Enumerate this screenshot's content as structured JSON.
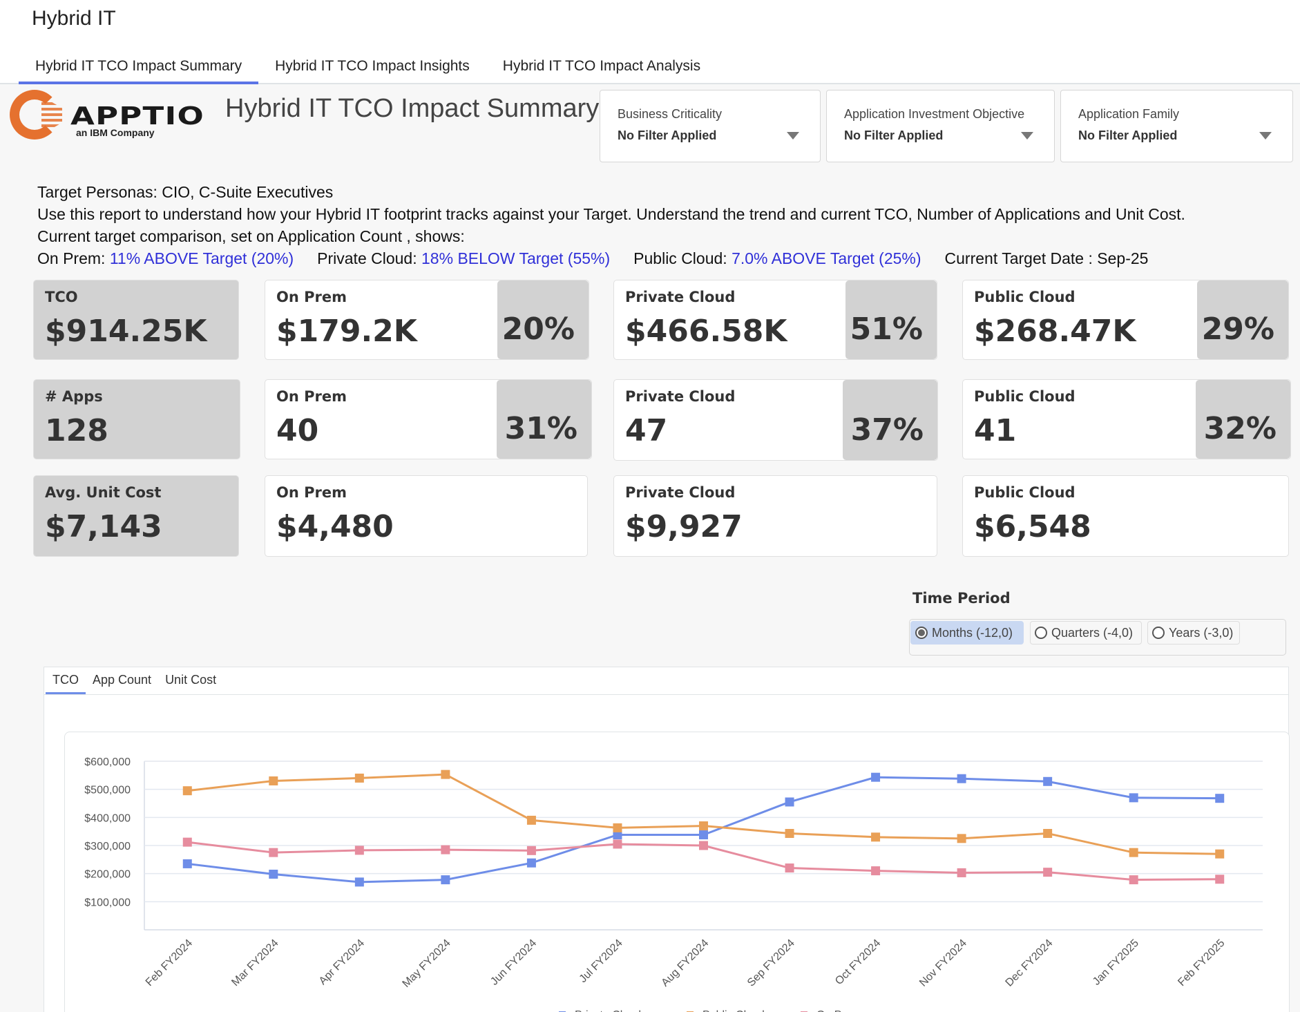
{
  "app": {
    "title": "Hybrid IT"
  },
  "tabs": [
    {
      "label": "Hybrid IT TCO Impact Summary",
      "active": true
    },
    {
      "label": "Hybrid IT TCO Impact Insights",
      "active": false
    },
    {
      "label": "Hybrid IT TCO Impact Analysis",
      "active": false
    }
  ],
  "logo": {
    "name": "APPTIO",
    "sub": "an IBM Company",
    "brand_color": "#e5712f"
  },
  "page_title": "Hybrid IT TCO Impact Summary",
  "filters": [
    {
      "label": "Business Criticality",
      "value": "No Filter Applied"
    },
    {
      "label": "Application Investment Objective",
      "value": "No Filter Applied"
    },
    {
      "label": "Application Family",
      "value": "No Filter Applied"
    }
  ],
  "description": {
    "line1": "Target Personas: CIO, C-Suite Executives",
    "line2": "Use this report to understand how your Hybrid IT footprint tracks against your Target. Understand the trend and current TCO, Number of Applications and Unit Cost.",
    "line3": "Current target comparison, set on Application Count , shows:",
    "onprem_label": "On Prem: ",
    "onprem_value": "11% ABOVE Target (20%)",
    "private_label": "Private Cloud: ",
    "private_value": "18% BELOW Target (55%)",
    "public_label": "Public Cloud: ",
    "public_value": "7.0% ABOVE Target (25%)",
    "target_date": "Current Target Date : Sep-25",
    "highlight_color": "#3030d8"
  },
  "kpis": {
    "tco": {
      "total": {
        "label": "TCO",
        "value": "$914.25K"
      },
      "onprem": {
        "label": "On Prem",
        "value": "$179.2K",
        "pct": "20%"
      },
      "private": {
        "label": "Private Cloud",
        "value": "$466.58K",
        "pct": "51%"
      },
      "public": {
        "label": "Public Cloud",
        "value": "$268.47K",
        "pct": "29%"
      }
    },
    "apps": {
      "total": {
        "label": "# Apps",
        "value": "128"
      },
      "onprem": {
        "label": "On Prem",
        "value": "40",
        "pct": "31%"
      },
      "private": {
        "label": "Private Cloud",
        "value": "47",
        "pct": "37%"
      },
      "public": {
        "label": "Public Cloud",
        "value": "41",
        "pct": "32%"
      }
    },
    "unit": {
      "total": {
        "label": "Avg. Unit Cost",
        "value": "$7,143"
      },
      "onprem": {
        "label": "On Prem",
        "value": "$4,480"
      },
      "private": {
        "label": "Private Cloud",
        "value": "$9,927"
      },
      "public": {
        "label": "Public Cloud",
        "value": "$6,548"
      }
    }
  },
  "time_period": {
    "label": "Time Period",
    "options": [
      {
        "label": "Months (-12,0)",
        "selected": true
      },
      {
        "label": "Quarters (-4,0)",
        "selected": false
      },
      {
        "label": "Years (-3,0)",
        "selected": false
      }
    ]
  },
  "chart_tabs": [
    {
      "label": "TCO",
      "active": true
    },
    {
      "label": "App Count",
      "active": false
    },
    {
      "label": "Unit Cost",
      "active": false
    }
  ],
  "chart_data": {
    "type": "line",
    "title": "",
    "xlabel": "",
    "ylabel": "",
    "categories": [
      "Feb FY2024",
      "Mar FY2024",
      "Apr FY2024",
      "May FY2024",
      "Jun FY2024",
      "Jul FY2024",
      "Aug FY2024",
      "Sep FY2024",
      "Oct FY2024",
      "Nov FY2024",
      "Dec FY2024",
      "Jan FY2025",
      "Feb FY2025"
    ],
    "yticks": [
      100000,
      200000,
      300000,
      400000,
      500000,
      600000
    ],
    "ytick_labels": [
      "$100,000",
      "$200,000",
      "$300,000",
      "$400,000",
      "$500,000",
      "$600,000"
    ],
    "ylim": [
      0,
      600000
    ],
    "grid": true,
    "legend_position": "bottom",
    "series": [
      {
        "name": "Private Cloud",
        "color": "#6e8de8",
        "values": [
          235000,
          198000,
          170000,
          178000,
          238000,
          338000,
          338000,
          455000,
          543000,
          538000,
          528000,
          470000,
          468000
        ]
      },
      {
        "name": "Public Cloud",
        "color": "#e9a057",
        "values": [
          495000,
          530000,
          540000,
          553000,
          390000,
          363000,
          370000,
          343000,
          330000,
          325000,
          343000,
          275000,
          270000
        ]
      },
      {
        "name": "On Prem",
        "color": "#e68c9e",
        "values": [
          312000,
          275000,
          283000,
          285000,
          282000,
          305000,
          300000,
          220000,
          210000,
          203000,
          205000,
          178000,
          180000
        ]
      }
    ]
  }
}
